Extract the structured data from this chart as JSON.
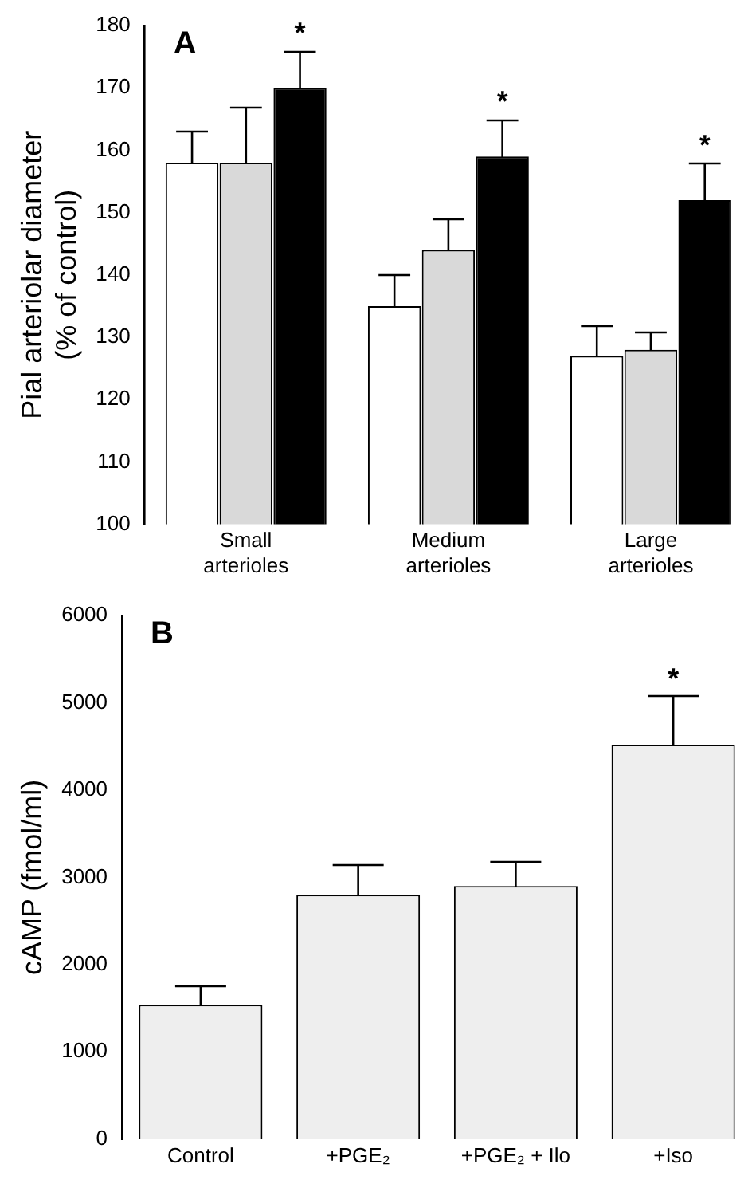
{
  "chart_data": [
    {
      "type": "bar",
      "title": "A",
      "ylabel": "Pial arteriolar diameter (% of control)",
      "categories": [
        "Small arterioles",
        "Medium arterioles",
        "Large arterioles"
      ],
      "series": [
        {
          "color": "#ffffff",
          "values": [
            158,
            135,
            127
          ],
          "errors": [
            [
              158,
              163
            ],
            [
              135,
              140
            ],
            [
              127,
              132
            ]
          ]
        },
        {
          "color": "#d9d9d9",
          "values": [
            158,
            144,
            128
          ],
          "errors": [
            [
              158,
              167
            ],
            [
              144,
              149
            ],
            [
              128,
              131
            ]
          ]
        },
        {
          "color": "#000000",
          "values": [
            170,
            159,
            152
          ],
          "errors": [
            [
              170,
              176
            ],
            [
              159,
              165
            ],
            [
              152,
              158
            ]
          ],
          "value_labels": [
            "*",
            "*",
            "*"
          ]
        }
      ],
      "ylim": [
        100,
        180
      ],
      "yticks": [
        100,
        110,
        120,
        130,
        140,
        150,
        160,
        170,
        180
      ],
      "grid": false,
      "legend": false
    },
    {
      "type": "bar",
      "title": "B",
      "ylabel": "cAMP (fmol/ml)",
      "categories": [
        "Control",
        "+PGE₂",
        "+PGE₂ + Ilo",
        "+Iso"
      ],
      "series": [
        {
          "color": "#eeeeee",
          "values": [
            1540,
            2800,
            2900,
            4520
          ],
          "errors": [
            [
              1540,
              1770
            ],
            [
              2800,
              3150
            ],
            [
              2900,
              3190
            ],
            [
              4520,
              5080
            ]
          ],
          "value_labels": [
            null,
            null,
            null,
            "*"
          ]
        }
      ],
      "ylim": [
        0,
        6000
      ],
      "yticks": [
        0,
        1000,
        2000,
        3000,
        4000,
        5000,
        6000
      ],
      "grid": false,
      "legend": false
    }
  ]
}
